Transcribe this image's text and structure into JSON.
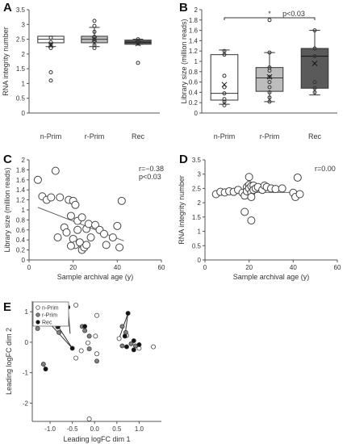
{
  "chart_data": [
    {
      "panel": "A",
      "type": "box",
      "ylabel": "RNA integrity number",
      "ylim": [
        0,
        3.5
      ],
      "yticks": [
        "0",
        "0.5",
        "1",
        "1.5",
        "2",
        "2.5",
        "3",
        "3.5"
      ],
      "categories": [
        "n-Prim",
        "r-Prim",
        "Rec"
      ],
      "fills": [
        "#ffffff",
        "#bdbdbd",
        "#5a5a5a"
      ],
      "boxes": [
        {
          "min": 2.25,
          "q1": 2.38,
          "median": 2.5,
          "q3": 2.6,
          "max": 2.6,
          "mean": 2.3,
          "points": [
            2.55,
            2.4,
            2.3,
            2.2,
            1.38,
            1.1
          ]
        },
        {
          "min": 2.25,
          "q1": 2.38,
          "median": 2.5,
          "q3": 2.6,
          "max": 2.9,
          "mean": 2.5,
          "points": [
            3.12,
            2.95,
            2.75,
            2.58,
            2.5,
            2.45,
            2.3,
            2.2
          ]
        },
        {
          "min": 2.33,
          "q1": 2.33,
          "median": 2.4,
          "q3": 2.47,
          "max": 2.5,
          "mean": 2.35,
          "points": [
            2.5,
            2.42,
            2.35,
            1.7
          ]
        }
      ]
    },
    {
      "panel": "B",
      "type": "box",
      "ylabel": "Library size (million reads)",
      "ylim": [
        0,
        2
      ],
      "yticks": [
        "0",
        "0.2",
        "0.4",
        "0.6",
        "0.8",
        "1",
        "1.2",
        "1.4",
        "1.6",
        "1.8",
        "2"
      ],
      "categories": [
        "n-Prim",
        "r-Prim",
        "Rec"
      ],
      "fills": [
        "#ffffff",
        "#bdbdbd",
        "#5a5a5a"
      ],
      "significance": {
        "star": "*",
        "text": "p<0.03"
      },
      "boxes": [
        {
          "min": 0.17,
          "q1": 0.25,
          "median": 0.38,
          "q3": 1.13,
          "max": 1.22,
          "mean": 0.55,
          "points": [
            1.2,
            1.13,
            0.72,
            0.5,
            0.38,
            0.27,
            0.22,
            0.15
          ]
        },
        {
          "min": 0.22,
          "q1": 0.42,
          "median": 0.68,
          "q3": 0.88,
          "max": 1.17,
          "mean": 0.7,
          "points": [
            1.8,
            1.17,
            0.88,
            0.82,
            0.7,
            0.6,
            0.5,
            0.4,
            0.3,
            0.22
          ]
        },
        {
          "min": 0.35,
          "q1": 0.48,
          "median": 1.1,
          "q3": 1.25,
          "max": 1.6,
          "mean": 0.96,
          "points": [
            1.6,
            1.25,
            1.1,
            0.6,
            0.48,
            0.4
          ]
        }
      ]
    },
    {
      "panel": "C",
      "type": "scatter",
      "xlabel": "Sample archival age (y)",
      "ylabel": "Library size (million reads)",
      "xlim": [
        0,
        60
      ],
      "ylim": [
        0,
        2
      ],
      "xticks": [
        "0",
        "20",
        "40",
        "60"
      ],
      "yticks": [
        "0",
        "0.2",
        "0.4",
        "0.6",
        "0.8",
        "1",
        "1.2",
        "1.4",
        "1.6",
        "1.8",
        "2"
      ],
      "stats": [
        "r=−0.38",
        "p<0.03"
      ],
      "trend": {
        "x": [
          4,
          43
        ],
        "y": [
          1.05,
          0.38
        ]
      },
      "points": [
        [
          4,
          1.6
        ],
        [
          6,
          1.27
        ],
        [
          8,
          1.2
        ],
        [
          10,
          1.25
        ],
        [
          12,
          1.78
        ],
        [
          13,
          0.45
        ],
        [
          14,
          1.25
        ],
        [
          16,
          0.65
        ],
        [
          17,
          0.55
        ],
        [
          18,
          1.2
        ],
        [
          19,
          0.88
        ],
        [
          20,
          1.18
        ],
        [
          20,
          0.42
        ],
        [
          21,
          1.1
        ],
        [
          21,
          0.3
        ],
        [
          22,
          0.78
        ],
        [
          22,
          0.6
        ],
        [
          23,
          0.35
        ],
        [
          24,
          0.2
        ],
        [
          24,
          0.85
        ],
        [
          25,
          0.25
        ],
        [
          26,
          0.62
        ],
        [
          26,
          0.3
        ],
        [
          27,
          0.72
        ],
        [
          28,
          0.45
        ],
        [
          30,
          0.7
        ],
        [
          32,
          0.6
        ],
        [
          34,
          0.52
        ],
        [
          38,
          0.45
        ],
        [
          40,
          0.68
        ],
        [
          41,
          0.25
        ],
        [
          42,
          1.18
        ],
        [
          35,
          0.3
        ],
        [
          19,
          0.28
        ]
      ]
    },
    {
      "panel": "D",
      "type": "scatter",
      "xlabel": "Sample archival age (y)",
      "ylabel": "RNA integrity number",
      "xlim": [
        0,
        60
      ],
      "ylim": [
        0,
        3.5
      ],
      "xticks": [
        "0",
        "20",
        "40",
        "60"
      ],
      "yticks": [
        "0",
        "0.5",
        "1",
        "1.5",
        "2",
        "2.5",
        "3",
        "3.5"
      ],
      "stats": [
        "r=0.00"
      ],
      "trend": {
        "x": [
          4,
          43
        ],
        "y": [
          2.36,
          2.36
        ]
      },
      "points": [
        [
          5,
          2.3
        ],
        [
          7,
          2.38
        ],
        [
          9,
          2.36
        ],
        [
          11,
          2.4
        ],
        [
          13,
          2.38
        ],
        [
          15,
          2.45
        ],
        [
          17,
          2.35
        ],
        [
          18,
          2.25
        ],
        [
          19,
          2.55
        ],
        [
          19,
          2.4
        ],
        [
          20,
          2.9
        ],
        [
          20,
          2.62
        ],
        [
          20,
          2.5
        ],
        [
          21,
          2.58
        ],
        [
          21,
          2.35
        ],
        [
          21,
          2.2
        ],
        [
          22,
          2.6
        ],
        [
          22,
          2.45
        ],
        [
          23,
          2.5
        ],
        [
          24,
          2.55
        ],
        [
          26,
          2.45
        ],
        [
          27,
          2.6
        ],
        [
          28,
          2.55
        ],
        [
          30,
          2.5
        ],
        [
          32,
          2.48
        ],
        [
          35,
          2.5
        ],
        [
          40,
          2.35
        ],
        [
          41,
          2.2
        ],
        [
          42,
          2.88
        ],
        [
          43,
          2.3
        ],
        [
          18,
          1.68
        ],
        [
          21,
          1.38
        ]
      ]
    },
    {
      "panel": "E",
      "type": "scatter",
      "xlabel": "Leading logFC dim 1",
      "ylabel": "Leading logFC dim 2",
      "xlim": [
        -1.4,
        1.5
      ],
      "ylim": [
        -2.6,
        1.35
      ],
      "xticks": [
        "-1.0",
        "-0.5",
        "0.0",
        "0.5",
        "1.0"
      ],
      "xtick_values": [
        -1.0,
        -0.5,
        0.0,
        0.5,
        1.0
      ],
      "yticks": [
        "-2",
        "-1",
        "0",
        "1"
      ],
      "ytick_values": [
        -2,
        -1,
        0,
        1
      ],
      "legend": [
        {
          "name": "n-Prim",
          "color": "#ffffff"
        },
        {
          "name": "r-Prim",
          "color": "#808080"
        },
        {
          "name": "Rec",
          "color": "#111111"
        }
      ],
      "series": [
        {
          "name": "n-Prim",
          "points": [
            [
              -0.42,
              1.22
            ],
            [
              0.05,
              0.88
            ],
            [
              0.02,
              0.2
            ],
            [
              -0.15,
              -0.02
            ],
            [
              -0.3,
              -0.28
            ],
            [
              -0.42,
              -0.52
            ],
            [
              0.05,
              -0.38
            ],
            [
              0.55,
              0.12
            ],
            [
              0.72,
              0.22
            ],
            [
              1.0,
              -0.2
            ],
            [
              1.32,
              -0.15
            ],
            [
              -0.12,
              -2.52
            ]
          ]
        },
        {
          "name": "r-Prim",
          "points": [
            [
              -1.28,
              0.45
            ],
            [
              -0.95,
              0.68
            ],
            [
              -0.83,
              0.5
            ],
            [
              -0.8,
              0.32
            ],
            [
              -0.28,
              0.52
            ],
            [
              -0.22,
              0.38
            ],
            [
              -0.12,
              -0.22
            ],
            [
              0.05,
              -0.62
            ],
            [
              -0.12,
              0.2
            ],
            [
              0.62,
              0.52
            ],
            [
              0.7,
              0.32
            ],
            [
              0.62,
              -0.12
            ],
            [
              0.82,
              -0.05
            ],
            [
              0.92,
              -0.12
            ],
            [
              -1.15,
              -0.72
            ]
          ]
        },
        {
          "name": "Rec",
          "points": [
            [
              -1.0,
              0.6
            ],
            [
              -0.82,
              0.52
            ],
            [
              -0.6,
              1.15
            ],
            [
              -0.5,
              -0.2
            ],
            [
              -0.22,
              0.52
            ],
            [
              0.75,
              0.95
            ],
            [
              0.68,
              0.2
            ],
            [
              0.72,
              -0.15
            ],
            [
              0.88,
              0.05
            ],
            [
              0.88,
              -0.25
            ],
            [
              1.0,
              -0.08
            ],
            [
              -1.1,
              -0.88
            ]
          ]
        }
      ],
      "links": [
        [
          [
            -0.6,
            1.15
          ],
          [
            -0.55,
            0.28
          ]
        ],
        [
          [
            -1.0,
            0.6
          ],
          [
            -0.5,
            -0.2
          ]
        ],
        [
          [
            -0.82,
            0.52
          ],
          [
            -0.5,
            -0.2
          ]
        ],
        [
          [
            0.75,
            0.95
          ],
          [
            0.55,
            0.12
          ]
        ],
        [
          [
            0.75,
            0.95
          ],
          [
            0.68,
            0.2
          ]
        ],
        [
          [
            -1.15,
            -0.72
          ],
          [
            -1.1,
            -0.88
          ]
        ]
      ]
    }
  ]
}
